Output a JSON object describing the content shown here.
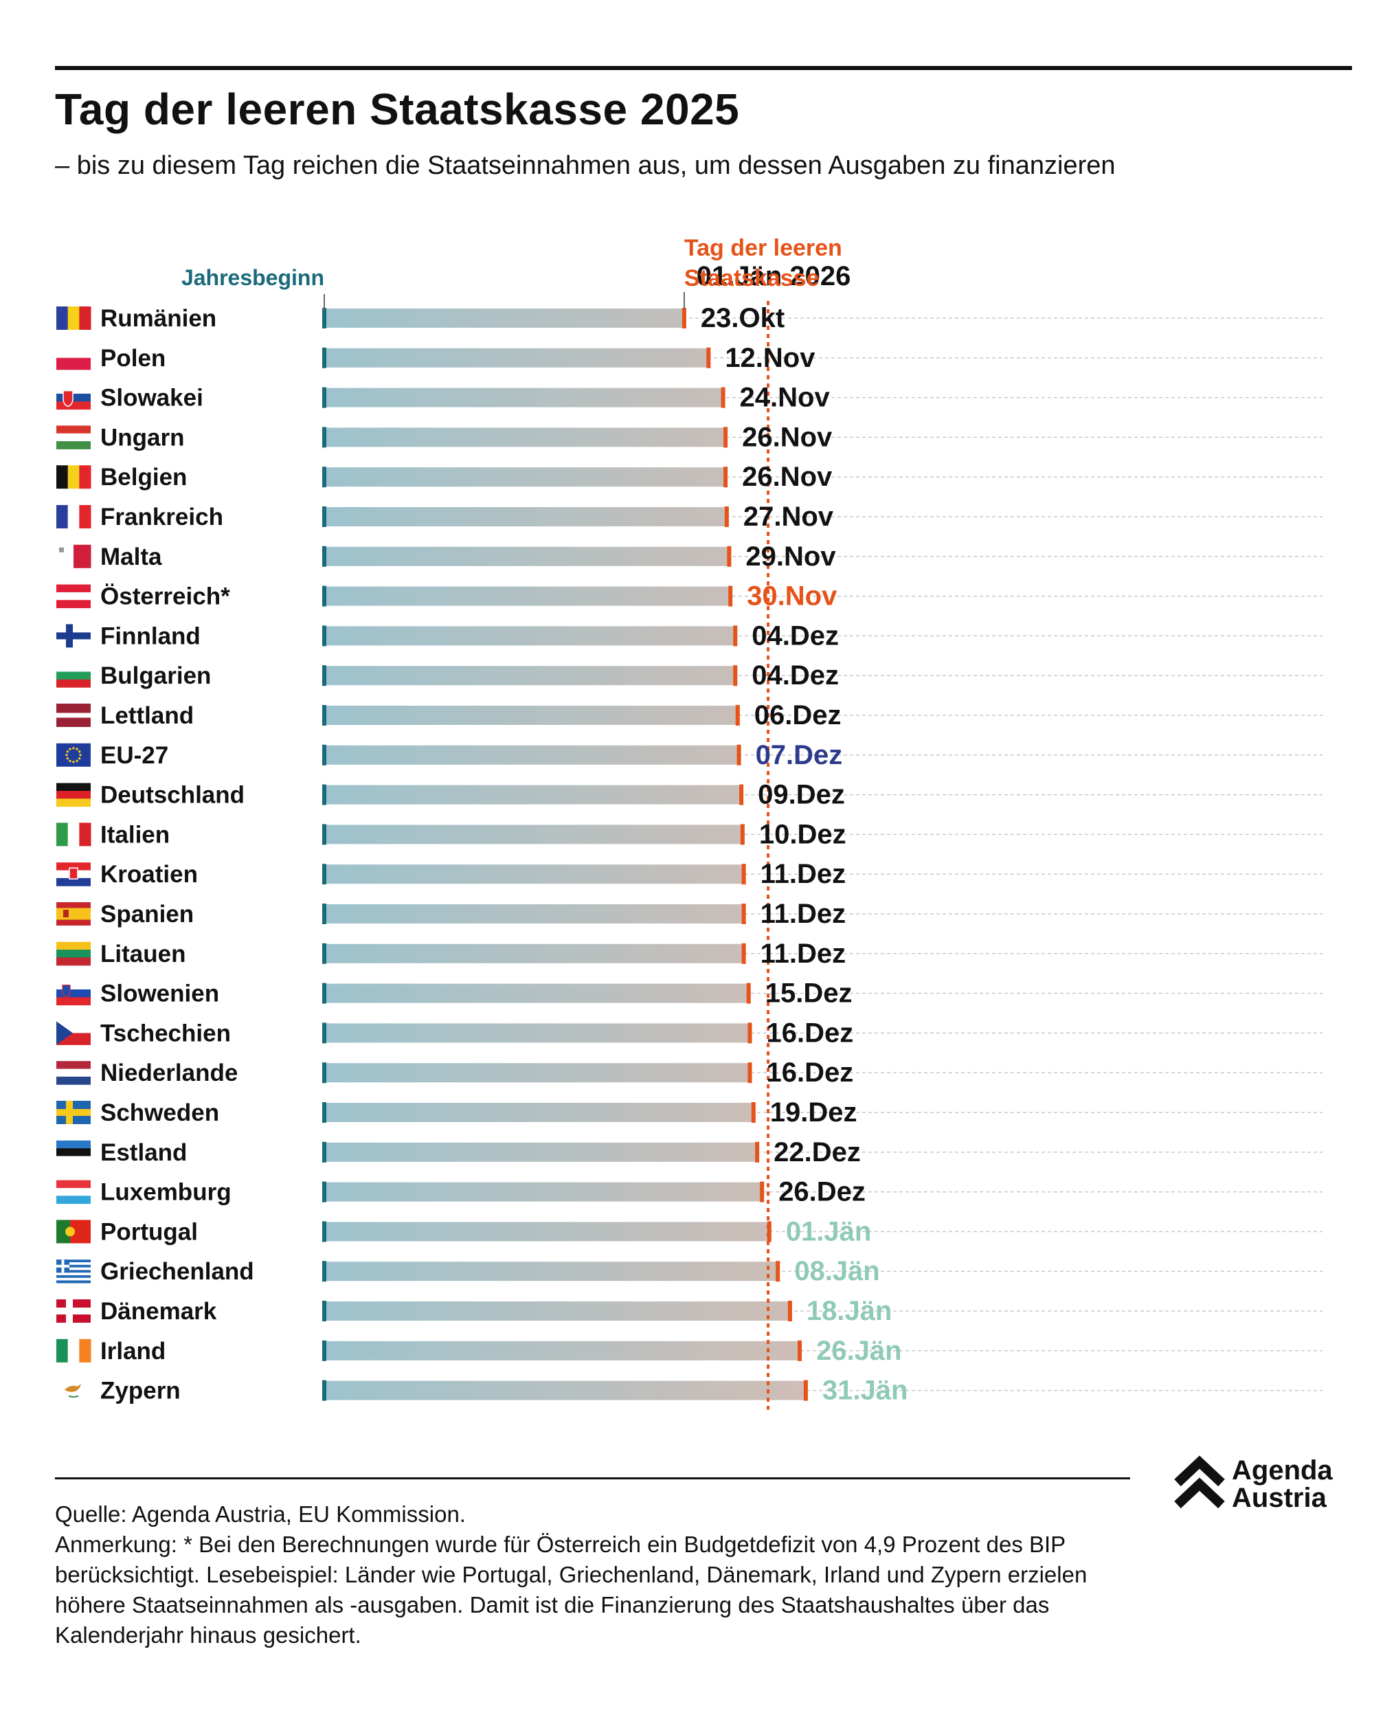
{
  "title": "Tag der leeren Staatskasse 2025",
  "subtitle": "– bis zu diesem Tag reichen die Staatseinnahmen aus, um dessen Ausgaben zu finanzieren",
  "chart_data": {
    "type": "bar",
    "orientation": "horizontal",
    "unit": "days elapsed since 1 Jan 2025",
    "x_range": [
      0,
      397
    ],
    "reference_line": {
      "label": "01.Jän 2026",
      "value": 365
    },
    "legend": {
      "start_label": "Jahresbeginn",
      "end_label": "Tag der leeren Staatskasse"
    },
    "colors": {
      "start": "#1a6a7c",
      "end": "#e5531a",
      "beyond_year": "#8fcab4",
      "eu": "#2e3a8c",
      "austria": "#e5531a",
      "default": "#111111",
      "bar_start": "#9dc3cd",
      "bar_end": "#f6b8a3"
    },
    "categories": [
      "Rumänien",
      "Polen",
      "Slowakei",
      "Ungarn",
      "Belgien",
      "Frankreich",
      "Malta",
      "Österreich*",
      "Finnland",
      "Bulgarien",
      "Lettland",
      "EU-27",
      "Deutschland",
      "Italien",
      "Kroatien",
      "Spanien",
      "Litauen",
      "Slowenien",
      "Tschechien",
      "Niederlande",
      "Schweden",
      "Estland",
      "Luxemburg",
      "Portugal",
      "Griechenland",
      "Dänemark",
      "Irland",
      "Zypern"
    ],
    "labels": [
      "23.Okt",
      "12.Nov",
      "24.Nov",
      "26.Nov",
      "26.Nov",
      "27.Nov",
      "29.Nov",
      "30.Nov",
      "04.Dez",
      "04.Dez",
      "06.Dez",
      "07.Dez",
      "09.Dez",
      "10.Dez",
      "11.Dez",
      "11.Dez",
      "11.Dez",
      "15.Dez",
      "16.Dez",
      "16.Dez",
      "19.Dez",
      "22.Dez",
      "26.Dez",
      "01.Jän",
      "08.Jän",
      "18.Jän",
      "26.Jän",
      "31.Jän"
    ],
    "values": [
      296,
      316,
      328,
      330,
      330,
      331,
      333,
      334,
      338,
      338,
      340,
      341,
      343,
      344,
      345,
      345,
      345,
      349,
      350,
      350,
      353,
      356,
      360,
      366,
      373,
      383,
      391,
      396
    ],
    "flags": [
      "romania",
      "poland",
      "slovakia",
      "hungary",
      "belgium",
      "france",
      "malta",
      "austria",
      "finland",
      "bulgaria",
      "latvia",
      "eu",
      "germany",
      "italy",
      "croatia",
      "spain",
      "lithuania",
      "slovenia",
      "czechia",
      "netherlands",
      "sweden",
      "estonia",
      "luxembourg",
      "portugal",
      "greece",
      "denmark",
      "ireland",
      "cyprus"
    ],
    "highlight": {
      "bold_category": "Österreich*",
      "austria_index": 7,
      "eu_index": 11
    }
  },
  "footer": {
    "source": "Quelle: Agenda Austria, EU Kommission.",
    "note": "Anmerkung: * Bei den Berechnungen wurde für Österreich ein Budgetdefizit von 4,9 Prozent des BIP berücksichtigt. Lesebeispiel: Länder wie Portugal, Griechenland, Dänemark, Irland und Zypern erzielen höhere Staatseinnahmen als -ausgaben. Damit ist die Finanzierung des Staatshaushaltes über das Kalenderjahr hinaus gesichert."
  },
  "logo": {
    "line1": "Agenda",
    "line2": "Austria"
  }
}
